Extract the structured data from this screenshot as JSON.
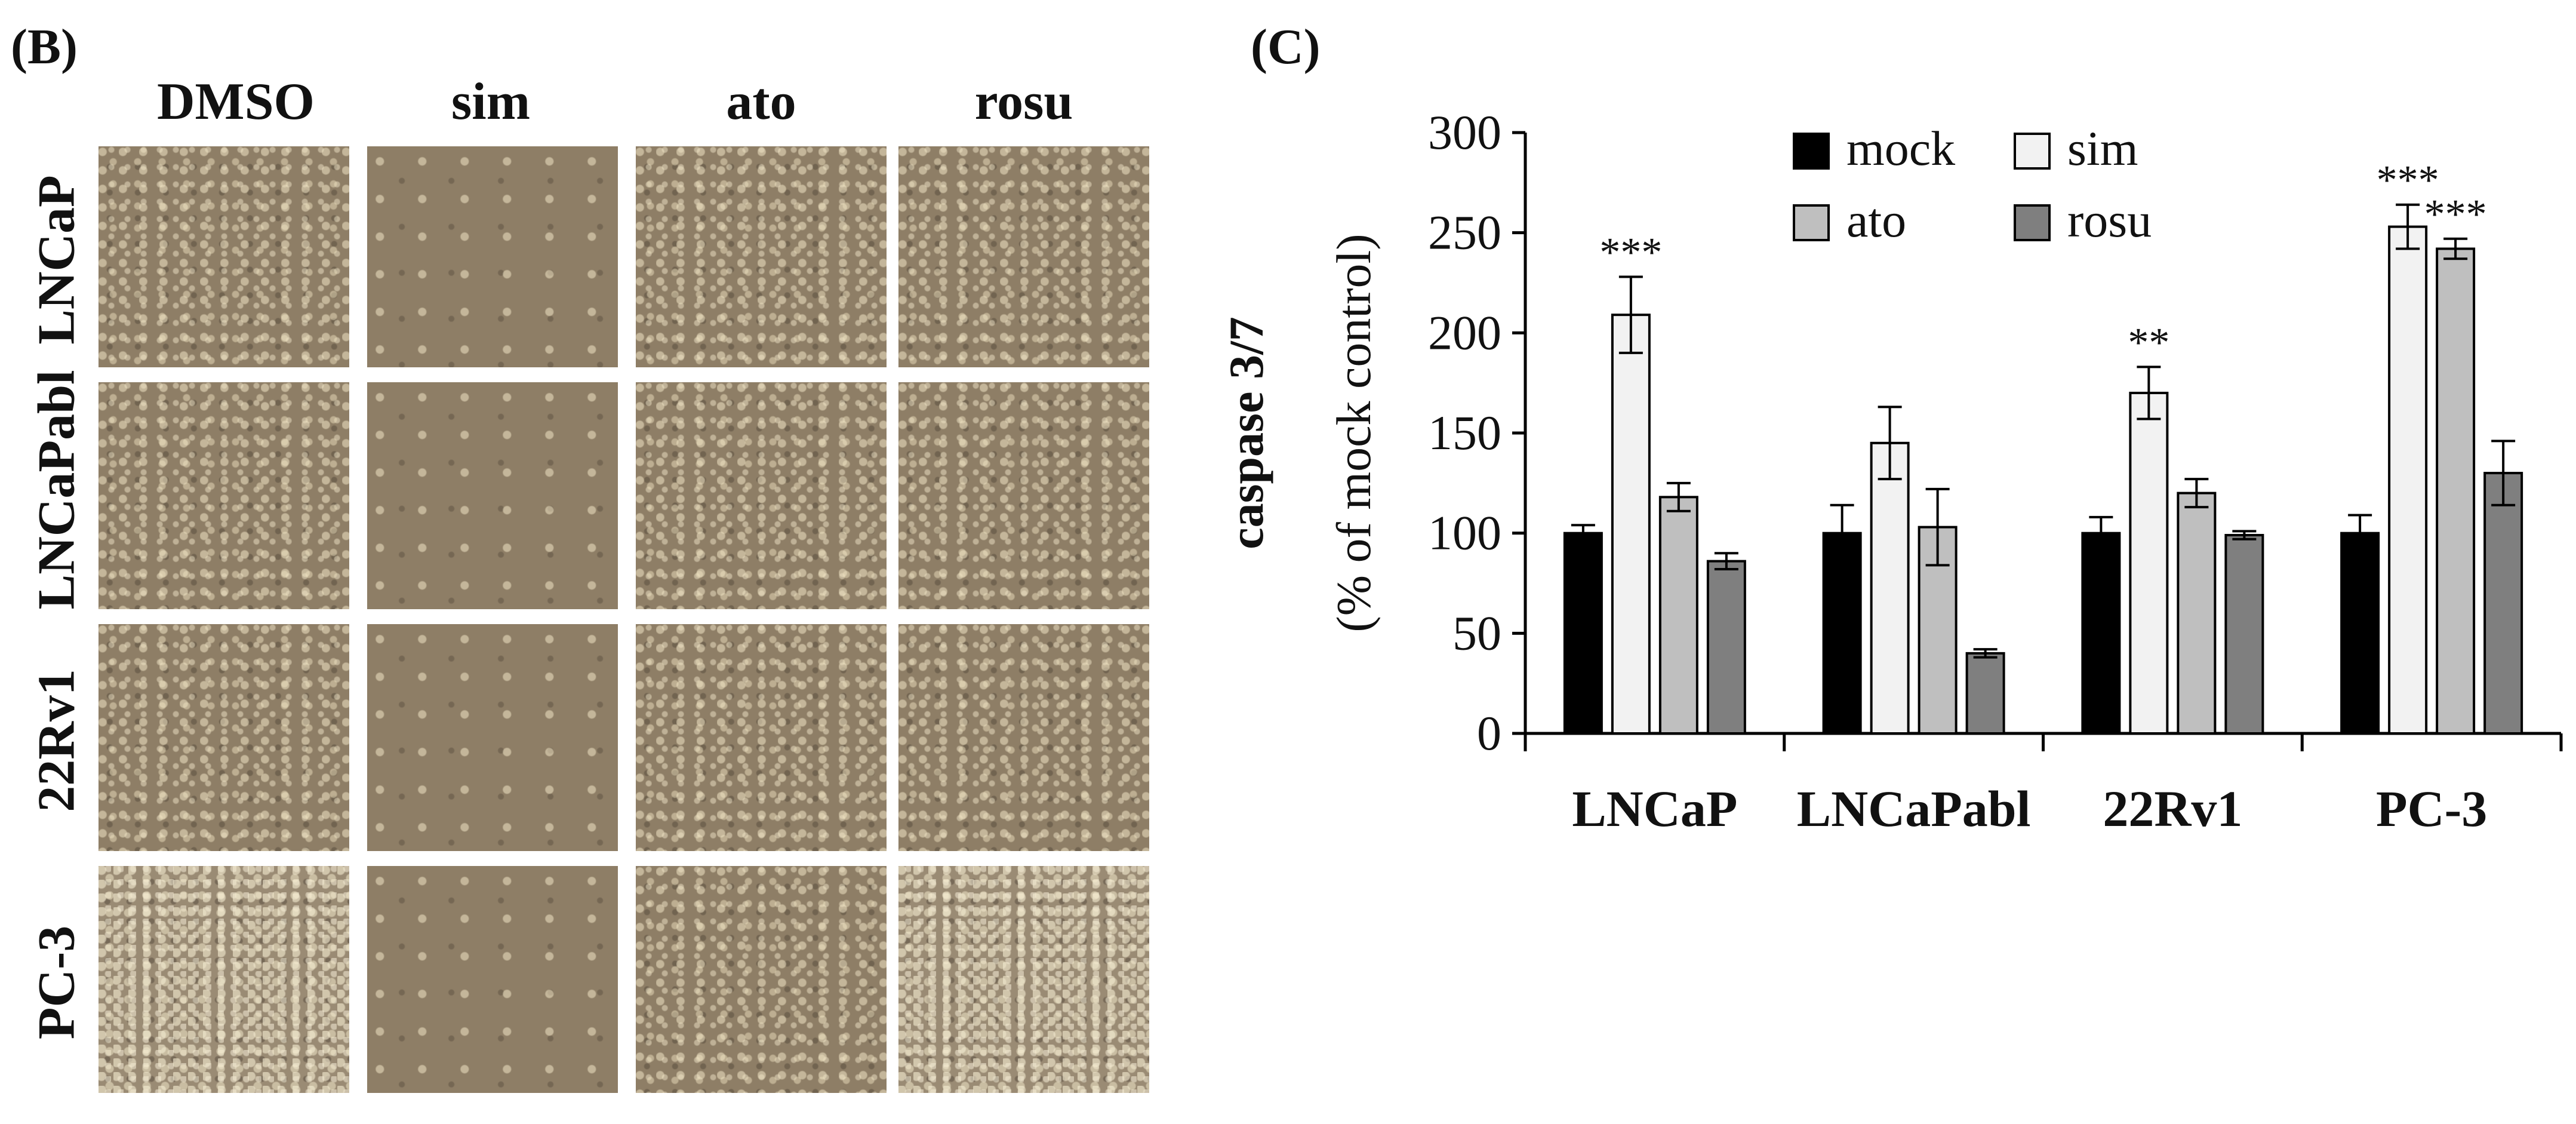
{
  "panel_b": {
    "label": "(B)",
    "columns": [
      "DMSO",
      "sim",
      "ato",
      "rosu"
    ],
    "rows": [
      "LNCaP",
      "LNCaPabl",
      "22Rv1",
      "PC-3"
    ]
  },
  "panel_c": {
    "label": "(C)"
  },
  "chart_data": {
    "type": "bar",
    "categories": [
      "LNCaP",
      "LNCaPabl",
      "22Rv1",
      "PC-3"
    ],
    "series": [
      {
        "name": "mock",
        "color": "#000000",
        "values": [
          100,
          100,
          100,
          100
        ],
        "errors": [
          4,
          14,
          8,
          9
        ]
      },
      {
        "name": "sim",
        "color": "#f2f2f2",
        "values": [
          209,
          145,
          170,
          253
        ],
        "errors": [
          19,
          18,
          13,
          11
        ]
      },
      {
        "name": "ato",
        "color": "#bfbfbf",
        "values": [
          118,
          103,
          120,
          242
        ],
        "errors": [
          7,
          19,
          7,
          5
        ]
      },
      {
        "name": "rosu",
        "color": "#7f7f7f",
        "values": [
          86,
          40,
          99,
          130
        ],
        "errors": [
          4,
          2,
          2,
          16
        ]
      }
    ],
    "annotations": [
      {
        "category": "LNCaP",
        "series": "sim",
        "text": "***"
      },
      {
        "category": "22Rv1",
        "series": "sim",
        "text": "**"
      },
      {
        "category": "PC-3",
        "series": "sim",
        "text": "***"
      },
      {
        "category": "PC-3",
        "series": "ato",
        "text": "***"
      }
    ],
    "ylabel_bold": "caspase 3/7",
    "ylabel": "(% of mock control)",
    "ylim": [
      0,
      300
    ],
    "yticks": [
      "0",
      "50",
      "100",
      "150",
      "200",
      "250",
      "300"
    ],
    "grid": false,
    "legend_position": "top"
  }
}
